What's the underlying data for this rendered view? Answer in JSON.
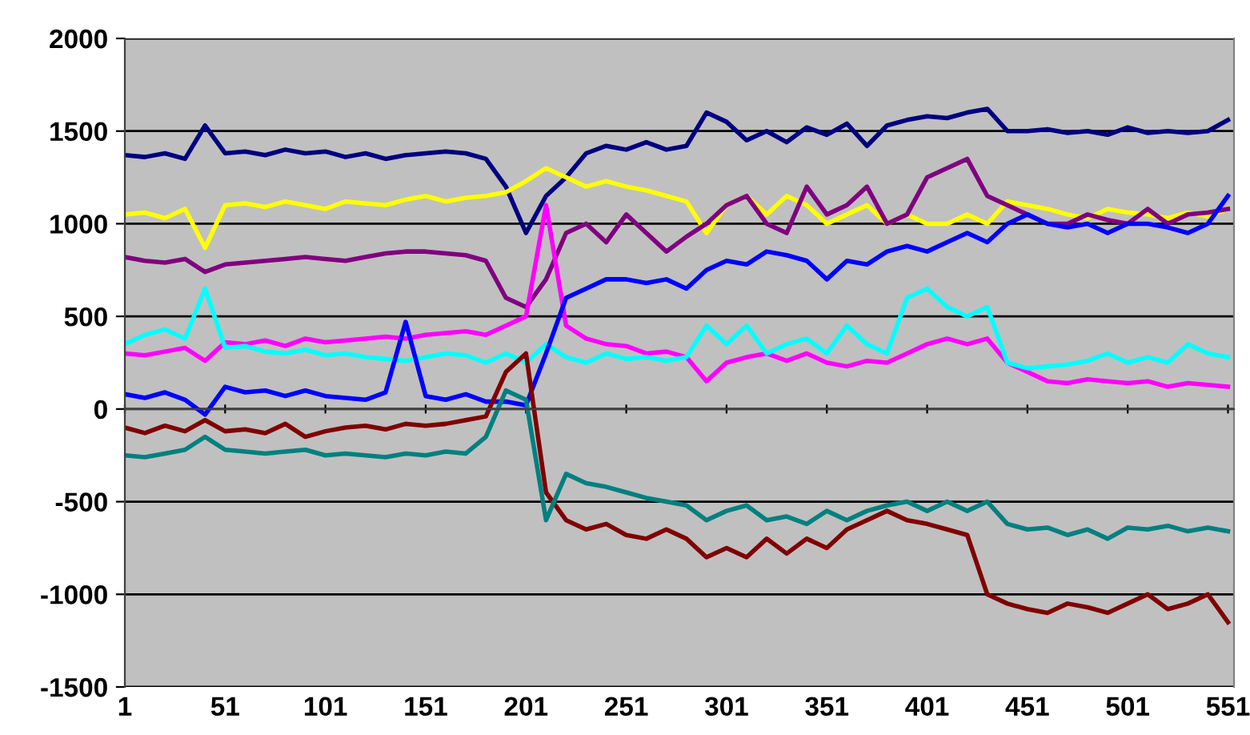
{
  "chart_data": {
    "type": "line",
    "x": [
      1,
      11,
      21,
      31,
      41,
      51,
      61,
      71,
      81,
      91,
      101,
      111,
      121,
      131,
      141,
      151,
      161,
      171,
      181,
      191,
      201,
      211,
      221,
      231,
      241,
      251,
      261,
      271,
      281,
      291,
      301,
      311,
      321,
      331,
      341,
      351,
      361,
      371,
      381,
      391,
      401,
      411,
      421,
      431,
      441,
      451,
      461,
      471,
      481,
      491,
      501,
      511,
      521,
      531,
      541,
      551
    ],
    "xlim": [
      1,
      554
    ],
    "xticks": [
      1,
      51,
      101,
      151,
      201,
      251,
      301,
      351,
      401,
      451,
      501,
      551
    ],
    "ylim": [
      -1500,
      2000
    ],
    "yticks": [
      -1500,
      -1000,
      -500,
      0,
      500,
      1000,
      1500,
      2000
    ],
    "grid": "y",
    "marker": "none",
    "line_style": "solid",
    "series": [
      {
        "color": "#000080",
        "values": [
          1370,
          1360,
          1380,
          1350,
          1530,
          1380,
          1390,
          1370,
          1400,
          1380,
          1390,
          1360,
          1380,
          1350,
          1370,
          1380,
          1390,
          1380,
          1350,
          1200,
          950,
          1150,
          1250,
          1380,
          1420,
          1400,
          1440,
          1400,
          1420,
          1600,
          1550,
          1450,
          1500,
          1440,
          1520,
          1480,
          1540,
          1420,
          1530,
          1560,
          1580,
          1570,
          1600,
          1620,
          1500,
          1500,
          1510,
          1490,
          1500,
          1480,
          1520,
          1490,
          1500,
          1490,
          1500,
          1560
        ]
      },
      {
        "color": "#ffff00",
        "values": [
          1050,
          1060,
          1030,
          1080,
          870,
          1100,
          1110,
          1090,
          1120,
          1100,
          1080,
          1120,
          1110,
          1100,
          1130,
          1150,
          1120,
          1140,
          1150,
          1170,
          1230,
          1300,
          1250,
          1200,
          1230,
          1200,
          1180,
          1150,
          1120,
          950,
          1100,
          1150,
          1050,
          1150,
          1100,
          1000,
          1050,
          1100,
          1000,
          1050,
          1000,
          1000,
          1050,
          1000,
          1120,
          1100,
          1080,
          1050,
          1030,
          1080,
          1060,
          1050,
          1030,
          1060,
          1040,
          1080
        ]
      },
      {
        "color": "#800080",
        "values": [
          820,
          800,
          790,
          810,
          740,
          780,
          790,
          800,
          810,
          820,
          810,
          800,
          820,
          840,
          850,
          850,
          840,
          830,
          800,
          600,
          550,
          700,
          950,
          1000,
          900,
          1050,
          950,
          850,
          930,
          1000,
          1100,
          1150,
          1000,
          950,
          1200,
          1050,
          1100,
          1200,
          1000,
          1050,
          1250,
          1300,
          1350,
          1150,
          1100,
          1050,
          1000,
          1000,
          1050,
          1020,
          1000,
          1080,
          1000,
          1050,
          1060,
          1080
        ]
      },
      {
        "color": "#ff00ff",
        "values": [
          300,
          290,
          310,
          330,
          260,
          360,
          350,
          370,
          340,
          380,
          360,
          370,
          380,
          390,
          380,
          400,
          410,
          420,
          400,
          450,
          500,
          1100,
          450,
          380,
          350,
          340,
          300,
          310,
          280,
          150,
          250,
          280,
          300,
          260,
          300,
          250,
          230,
          260,
          250,
          300,
          350,
          380,
          350,
          380,
          250,
          200,
          150,
          140,
          160,
          150,
          140,
          150,
          120,
          140,
          130,
          120
        ]
      },
      {
        "color": "#00ffff",
        "values": [
          350,
          400,
          430,
          380,
          650,
          330,
          340,
          310,
          300,
          320,
          290,
          300,
          280,
          270,
          260,
          280,
          300,
          290,
          250,
          300,
          250,
          350,
          280,
          250,
          300,
          270,
          280,
          260,
          280,
          450,
          350,
          450,
          300,
          350,
          380,
          300,
          450,
          350,
          300,
          600,
          650,
          550,
          500,
          550,
          250,
          220,
          230,
          240,
          260,
          300,
          250,
          280,
          250,
          350,
          300,
          280
        ]
      },
      {
        "color": "#0000ff",
        "values": [
          80,
          60,
          90,
          50,
          -30,
          120,
          90,
          100,
          70,
          100,
          70,
          60,
          50,
          90,
          470,
          70,
          50,
          80,
          40,
          40,
          20,
          300,
          600,
          650,
          700,
          700,
          680,
          700,
          650,
          750,
          800,
          780,
          850,
          830,
          800,
          700,
          800,
          780,
          850,
          880,
          850,
          900,
          950,
          900,
          1000,
          1050,
          1000,
          980,
          1000,
          950,
          1000,
          1000,
          980,
          950,
          1000,
          1150
        ]
      },
      {
        "color": "#800000",
        "values": [
          -100,
          -130,
          -90,
          -120,
          -60,
          -120,
          -110,
          -130,
          -80,
          -150,
          -120,
          -100,
          -90,
          -110,
          -80,
          -90,
          -80,
          -60,
          -40,
          200,
          300,
          -450,
          -600,
          -650,
          -620,
          -680,
          -700,
          -650,
          -700,
          -800,
          -750,
          -800,
          -700,
          -780,
          -700,
          -750,
          -650,
          -600,
          -550,
          -600,
          -620,
          -650,
          -680,
          -1000,
          -1050,
          -1080,
          -1100,
          -1050,
          -1070,
          -1100,
          -1050,
          -1000,
          -1080,
          -1050,
          -1000,
          -1150
        ]
      },
      {
        "color": "#008080",
        "values": [
          -250,
          -260,
          -240,
          -220,
          -150,
          -220,
          -230,
          -240,
          -230,
          -220,
          -250,
          -240,
          -250,
          -260,
          -240,
          -250,
          -230,
          -240,
          -150,
          100,
          50,
          -600,
          -350,
          -400,
          -420,
          -450,
          -480,
          -500,
          -520,
          -600,
          -550,
          -520,
          -600,
          -580,
          -620,
          -550,
          -600,
          -550,
          -520,
          -500,
          -550,
          -500,
          -550,
          -500,
          -620,
          -650,
          -640,
          -680,
          -650,
          -700,
          -640,
          -650,
          -630,
          -660,
          -640,
          -660
        ]
      }
    ]
  }
}
